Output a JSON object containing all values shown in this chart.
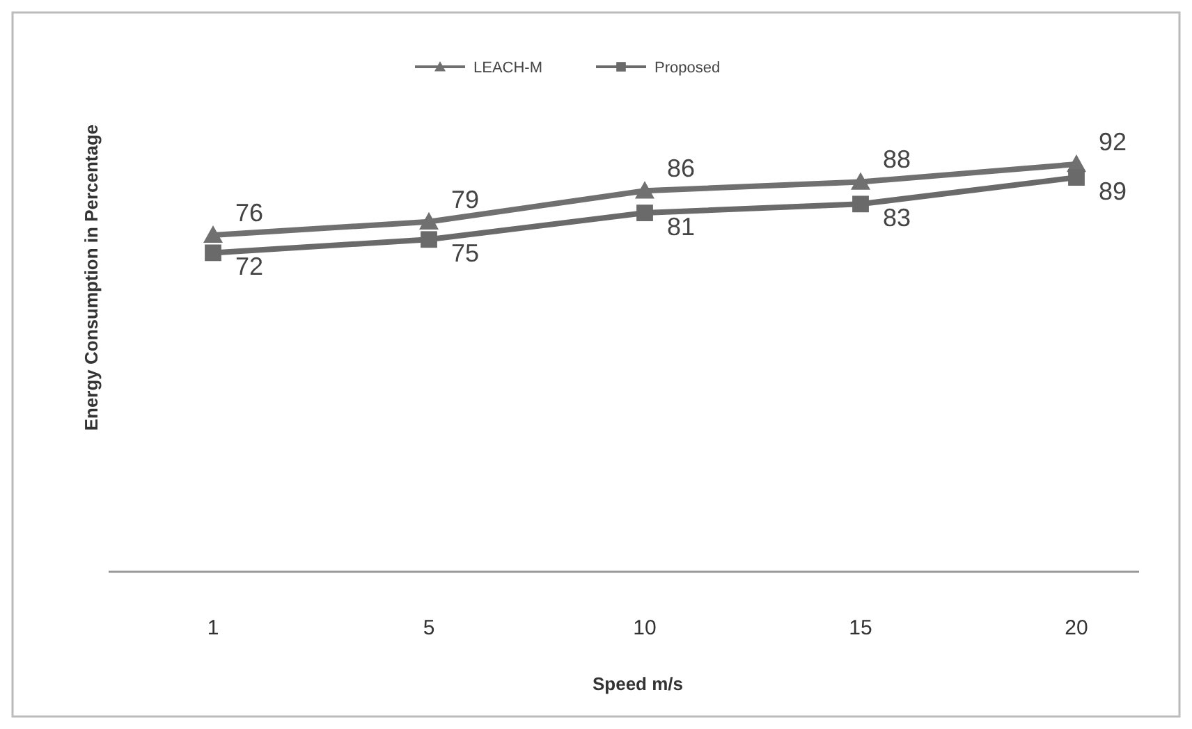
{
  "chart_data": {
    "type": "line",
    "xlabel": "Speed m/s",
    "ylabel": "Energy Consumption in Percentage",
    "categories": [
      "1",
      "5",
      "10",
      "15",
      "20"
    ],
    "tick_labels": "x",
    "data_labels": true,
    "legend": "top",
    "grid": false,
    "line_style": "solid",
    "series": [
      {
        "name": "LEACH-M",
        "color": "#707070",
        "marker": "triangle",
        "values": [
          76,
          79,
          86,
          88,
          92
        ]
      },
      {
        "name": "Proposed",
        "color": "#6a6a6a",
        "marker": "square",
        "values": [
          72,
          75,
          81,
          83,
          89
        ]
      }
    ]
  }
}
